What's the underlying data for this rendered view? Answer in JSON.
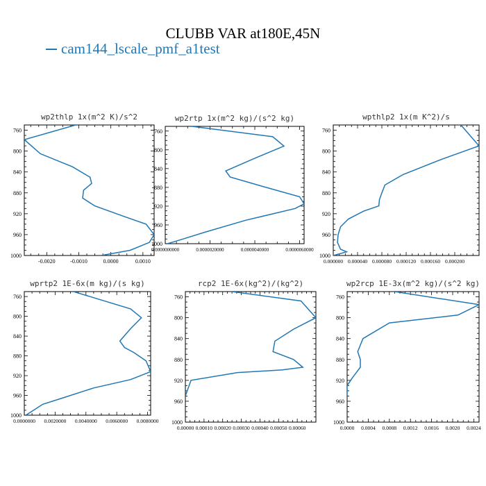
{
  "title": "CLUBB VAR at180E,45N",
  "legend": {
    "label": "cam144_lscale_pmf_a1test",
    "color": "#1f77b4"
  },
  "chart_data": [
    {
      "type": "line",
      "title": "wp2thlp  1x(m^2 K)/s^2",
      "xlim": [
        -0.0027,
        0.00135
      ],
      "ylim": [
        1000,
        750
      ],
      "xticks": [
        -0.002,
        -0.001,
        0.0,
        0.001
      ],
      "xtick_labels": [
        "-0.0020",
        "-0.0010",
        "0.0000",
        "0.0010"
      ],
      "yticks": [
        760,
        800,
        840,
        880,
        920,
        960,
        1000
      ],
      "ytick_labels": [
        "760",
        "800",
        "840",
        "880",
        "920",
        "960",
        "1000"
      ],
      "series": [
        {
          "color": "#1f77b4",
          "x": [
            -0.0011,
            -0.0027,
            -0.0022,
            -0.0012,
            -0.00065,
            -0.0006,
            -0.00085,
            -0.00088,
            -0.0005,
            0.0004,
            0.0011,
            0.00135,
            0.0012,
            0.0006,
            -0.0003
          ],
          "y": [
            750,
            778,
            805,
            830,
            850,
            862,
            875,
            890,
            905,
            925,
            940,
            960,
            975,
            990,
            1000
          ]
        }
      ]
    },
    {
      "type": "line",
      "title": "wp2rtp  1x(m^2 kg)/(s^2 kg)",
      "xlim": [
        0.0,
        6.2e-06
      ],
      "ylim": [
        1000,
        750
      ],
      "xticks": [
        0.0,
        2e-06,
        4e-06,
        6e-06
      ],
      "xtick_labels": [
        "0.0000000000",
        "0.0000020000",
        "0.0000040000",
        "0.0000060000"
      ],
      "yticks": [
        760,
        800,
        840,
        880,
        920,
        960,
        1000
      ],
      "ytick_labels": [
        "760",
        "800",
        "840",
        "880",
        "920",
        "960",
        "1000"
      ],
      "series": [
        {
          "color": "#1f77b4",
          "x": [
            1.2e-06,
            4.8e-06,
            5.3e-06,
            3.9e-06,
            2.7e-06,
            2.9e-06,
            4.5e-06,
            6e-06,
            6.2e-06,
            5.8e-06,
            3.6e-06,
            1.8e-06,
            8e-07,
            1e-07
          ],
          "y": [
            750,
            772,
            792,
            820,
            845,
            858,
            880,
            900,
            915,
            925,
            950,
            975,
            990,
            1000
          ]
        }
      ]
    },
    {
      "type": "line",
      "title": "wpthlp2  1x(m K^2)/s",
      "xlim": [
        0.0,
        0.00024
      ],
      "ylim": [
        1000,
        750
      ],
      "xticks": [
        0.0,
        4e-05,
        8e-05,
        0.00012,
        0.00016,
        0.0002
      ],
      "xtick_labels": [
        "0.000000",
        "0.000040",
        "0.000080",
        "0.000120",
        "0.000160",
        "0.000200"
      ],
      "yticks": [
        760,
        800,
        840,
        880,
        920,
        960,
        1000
      ],
      "ytick_labels": [
        "760",
        "800",
        "840",
        "880",
        "920",
        "960",
        "1000"
      ],
      "series": [
        {
          "color": "#1f77b4",
          "x": [
            0.00021,
            0.00024,
            0.00018,
            0.000115,
            8.5e-05,
            8e-05,
            7.6e-05,
            7.5e-05,
            5e-05,
            2.5e-05,
            1.2e-05,
            8e-06,
            7e-06,
            1.2e-05,
            2.2e-05,
            0.0
          ],
          "y": [
            750,
            790,
            815,
            845,
            865,
            880,
            893,
            905,
            915,
            930,
            945,
            960,
            975,
            988,
            993,
            1000
          ]
        }
      ]
    },
    {
      "type": "line",
      "title": "wprtp2  1E-6x(m kg)/(s kg)",
      "xlim": [
        0.0,
        0.0082
      ],
      "ylim": [
        1000,
        750
      ],
      "xticks": [
        0.0,
        0.002,
        0.004,
        0.006,
        0.008
      ],
      "xtick_labels": [
        "0.0000000",
        "0.0020000",
        "0.0040000",
        "0.0060000",
        "0.0080000"
      ],
      "yticks": [
        760,
        800,
        840,
        880,
        920,
        960,
        1000
      ],
      "ytick_labels": [
        "760",
        "800",
        "840",
        "880",
        "920",
        "960",
        "1000"
      ],
      "series": [
        {
          "color": "#1f77b4",
          "x": [
            0.0032,
            0.0069,
            0.0076,
            0.0069,
            0.0062,
            0.0065,
            0.0071,
            0.0079,
            0.0082,
            0.0069,
            0.0045,
            0.0025,
            0.0012,
            0.0006,
            0.0001
          ],
          "y": [
            750,
            785,
            803,
            825,
            850,
            863,
            873,
            890,
            912,
            928,
            945,
            965,
            978,
            990,
            1000
          ]
        }
      ]
    },
    {
      "type": "line",
      "title": "rcp2  1E-6x(kg^2)/(kg^2)",
      "xlim": [
        0.0,
        0.0007
      ],
      "ylim": [
        1000,
        750
      ],
      "xticks": [
        0.0,
        0.0001,
        0.0002,
        0.0003,
        0.0004,
        0.0005,
        0.0006
      ],
      "xtick_labels": [
        "0.00000",
        "0.00010",
        "0.00020",
        "0.00030",
        "0.00040",
        "0.00050",
        "0.00060"
      ],
      "yticks": [
        760,
        800,
        840,
        880,
        920,
        960,
        1000
      ],
      "ytick_labels": [
        "760",
        "800",
        "840",
        "880",
        "920",
        "960",
        "1000"
      ],
      "series": [
        {
          "color": "#1f77b4",
          "x": [
            0.00025,
            0.00062,
            0.0007,
            0.00058,
            0.00048,
            0.00047,
            0.00058,
            0.00063,
            0.00052,
            0.00028,
            3e-05,
            0.0
          ],
          "y": [
            750,
            768,
            800,
            822,
            845,
            865,
            880,
            895,
            900,
            905,
            920,
            950
          ]
        }
      ]
    },
    {
      "type": "line",
      "title": "wp2rcp  1E-3x(m^2 kg)/(s^2 kg)",
      "xlim": [
        0.0,
        0.0025
      ],
      "ylim": [
        1000,
        750
      ],
      "xticks": [
        0.0,
        0.0004,
        0.0008,
        0.0012,
        0.0016,
        0.002,
        0.0024
      ],
      "xtick_labels": [
        "0.0000",
        "0.0004",
        "0.0008",
        "0.0012",
        "0.0016",
        "0.0020",
        "0.0024"
      ],
      "yticks": [
        760,
        800,
        840,
        880,
        920,
        960,
        1000
      ],
      "ytick_labels": [
        "760",
        "800",
        "840",
        "880",
        "920",
        "960",
        "1000"
      ],
      "series": [
        {
          "color": "#1f77b4",
          "x": [
            0.0009,
            0.0025,
            0.0021,
            0.0008,
            0.0003,
            0.0002,
            0.00025,
            0.00025,
            0.0001,
            0.0,
            0.0
          ],
          "y": [
            750,
            775,
            795,
            810,
            840,
            865,
            880,
            895,
            915,
            930,
            950
          ]
        }
      ]
    }
  ]
}
